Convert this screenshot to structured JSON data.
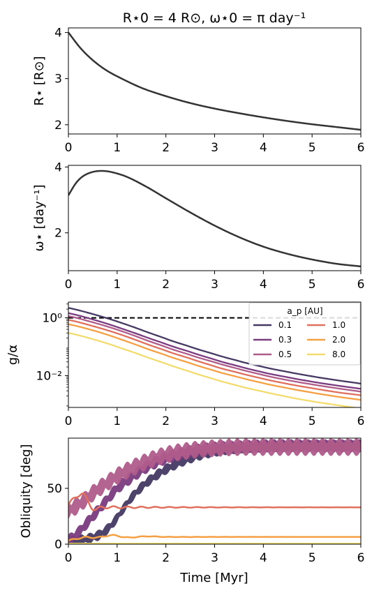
{
  "figure": {
    "title": "R⋆0 = 4 R⊙,  ω⋆0 = π day⁻¹",
    "xlabel": "Time [Myr]",
    "xlim": [
      0,
      6
    ],
    "xticks": [
      "0",
      "1",
      "2",
      "3",
      "4",
      "5",
      "6"
    ]
  },
  "legend_meta": {
    "title": "a_p [AU]",
    "placement": "top-right of panel 3"
  },
  "colors": {
    "main": "#333333",
    "a_0.1": "#453963",
    "a_0.3": "#7a3b80",
    "a_0.5": "#b05c8a",
    "a_1.0": "#e0705e",
    "a_2.0": "#f5a043",
    "a_8.0": "#f2dc6e",
    "dashed": "#000000"
  },
  "chart_data": [
    {
      "type": "line",
      "panel": "radius",
      "ylabel": "R⋆ [R⊙]",
      "ylim": [
        1.8,
        4.1
      ],
      "yticks": [
        2,
        3,
        4
      ],
      "series": [
        {
          "x": [
            0,
            0.25,
            0.5,
            0.75,
            1,
            1.5,
            2,
            2.5,
            3,
            3.5,
            4,
            4.5,
            5,
            5.5,
            6
          ],
          "values": [
            4.0,
            3.66,
            3.4,
            3.2,
            3.05,
            2.8,
            2.62,
            2.47,
            2.35,
            2.25,
            2.16,
            2.08,
            2.01,
            1.95,
            1.89
          ]
        }
      ]
    },
    {
      "type": "line",
      "panel": "spin",
      "ylabel": "ω⋆ [day⁻¹]",
      "ylim": [
        0.85,
        4.05
      ],
      "yticks": [
        2,
        4
      ],
      "series": [
        {
          "x": [
            0,
            0.15,
            0.3,
            0.5,
            0.7,
            0.9,
            1.2,
            1.6,
            2,
            2.5,
            3,
            3.5,
            4,
            4.5,
            5,
            5.5,
            6
          ],
          "values": [
            3.14,
            3.5,
            3.72,
            3.85,
            3.88,
            3.84,
            3.7,
            3.4,
            3.05,
            2.62,
            2.22,
            1.87,
            1.58,
            1.36,
            1.19,
            1.06,
            0.98
          ]
        }
      ]
    },
    {
      "type": "line",
      "panel": "ratio",
      "ylabel": "g/α",
      "yscale": "log",
      "ylim": [
        0.0008,
        3.5
      ],
      "yticks": [
        1,
        0.01
      ],
      "ytick_labels": [
        "10⁰",
        "10⁻²"
      ],
      "hline": 1,
      "x": [
        0,
        0.5,
        1,
        1.5,
        2,
        2.5,
        3,
        3.5,
        4,
        4.5,
        5,
        5.5,
        6
      ],
      "series": [
        {
          "name": "0.1",
          "values": [
            2.2,
            1.35,
            0.75,
            0.38,
            0.19,
            0.1,
            0.055,
            0.032,
            0.02,
            0.0135,
            0.0095,
            0.007,
            0.0053
          ]
        },
        {
          "name": "0.3",
          "values": [
            1.45,
            0.88,
            0.48,
            0.245,
            0.124,
            0.066,
            0.036,
            0.021,
            0.013,
            0.0088,
            0.0062,
            0.0046,
            0.0035
          ]
        },
        {
          "name": "0.5",
          "values": [
            1.15,
            0.7,
            0.39,
            0.195,
            0.098,
            0.052,
            0.029,
            0.017,
            0.0105,
            0.007,
            0.005,
            0.0037,
            0.0028
          ]
        },
        {
          "name": "1.0",
          "values": [
            0.85,
            0.52,
            0.29,
            0.145,
            0.073,
            0.039,
            0.021,
            0.0125,
            0.0078,
            0.0052,
            0.0037,
            0.0027,
            0.0021
          ]
        },
        {
          "name": "2.0",
          "values": [
            0.6,
            0.37,
            0.2,
            0.1,
            0.051,
            0.027,
            0.0148,
            0.0088,
            0.0055,
            0.0037,
            0.0026,
            0.0019,
            0.00145
          ]
        },
        {
          "name": "8.0",
          "values": [
            0.3,
            0.184,
            0.1,
            0.051,
            0.026,
            0.0137,
            0.0075,
            0.0044,
            0.0028,
            0.00185,
            0.0013,
            0.00097,
            0.00072
          ]
        }
      ]
    },
    {
      "type": "line",
      "panel": "obliquity",
      "ylabel": "Obliquity [deg]",
      "ylim": [
        0,
        95
      ],
      "yticks": [
        0,
        50
      ],
      "series": [
        {
          "name": "0.1",
          "x": [
            0,
            0.3,
            0.5,
            0.7,
            0.9,
            1.1,
            1.3,
            1.6,
            2,
            2.5,
            3,
            3.5,
            4,
            5,
            6
          ],
          "values": [
            2,
            4,
            6,
            10,
            18,
            30,
            42,
            55,
            67,
            77,
            83,
            86,
            87,
            88,
            88
          ],
          "band": 5
        },
        {
          "name": "0.3",
          "x": [
            0,
            0.2,
            0.4,
            0.6,
            0.8,
            1,
            1.3,
            1.6,
            2,
            2.5,
            3,
            3.5,
            4,
            5,
            6
          ],
          "values": [
            3,
            10,
            20,
            30,
            40,
            50,
            60,
            69,
            77,
            83,
            86,
            87,
            88,
            88,
            88
          ],
          "band": 6
        },
        {
          "name": "0.5",
          "x": [
            0,
            0.2,
            0.4,
            0.6,
            0.8,
            1,
            1.3,
            1.6,
            2,
            2.5,
            3,
            3.5,
            4,
            5,
            6
          ],
          "values": [
            30,
            35,
            42,
            49,
            55,
            61,
            68,
            74,
            80,
            84,
            86,
            87,
            87,
            87,
            87
          ],
          "band": 8
        },
        {
          "name": "1.0",
          "x": [
            0,
            0.2,
            0.3,
            0.5,
            0.7,
            1,
            1.5,
            2,
            3,
            4,
            5,
            6
          ],
          "values": [
            35,
            44,
            45,
            32,
            33,
            33,
            33,
            33,
            33,
            33,
            33,
            33
          ],
          "wiggle": 2.0
        },
        {
          "name": "2.0",
          "x": [
            0,
            0.3,
            0.6,
            0.9,
            1.2,
            1.6,
            2,
            3,
            4,
            5,
            6
          ],
          "values": [
            3,
            6,
            6,
            8,
            6,
            7,
            6.5,
            6.5,
            6.5,
            6.5,
            6.5
          ],
          "wiggle": 0.8
        },
        {
          "name": "8.0",
          "x": [
            0,
            1,
            2,
            3,
            4,
            5,
            6
          ],
          "values": [
            0.5,
            0.5,
            0.5,
            0.5,
            0.5,
            0.5,
            0.5
          ]
        }
      ]
    }
  ]
}
